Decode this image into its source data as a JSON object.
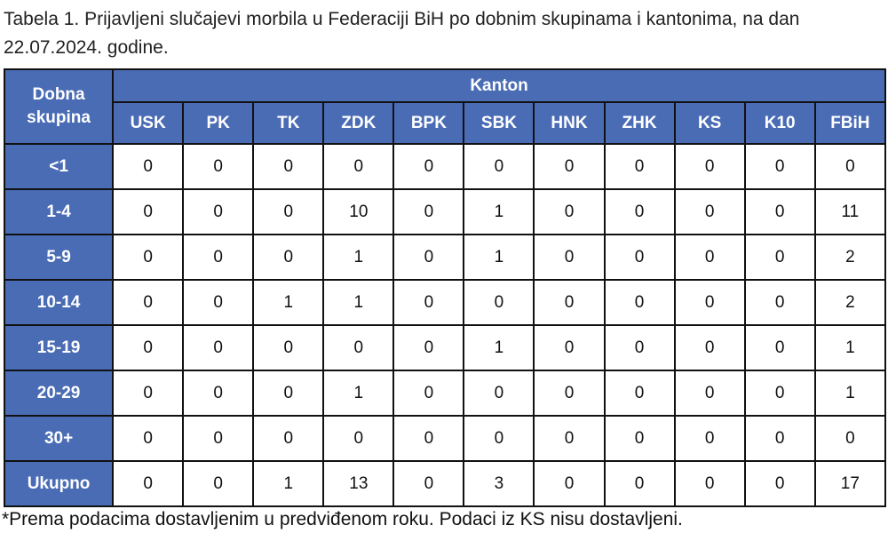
{
  "title": "Tabela 1. Prijavljeni slučajevi morbila u Federaciji BiH po dobnim skupinama i kantonima, na dan 22.07.2024. godine.",
  "table": {
    "corner_header": "Dobna skupina",
    "group_header": "Kanton",
    "columns": [
      "USK",
      "PK",
      "TK",
      "ZDK",
      "BPK",
      "SBK",
      "HNK",
      "ZHK",
      "KS",
      "K10",
      "FBiH"
    ],
    "rows": [
      {
        "label": "<1",
        "values": [
          "0",
          "0",
          "0",
          "0",
          "0",
          "0",
          "0",
          "0",
          "0",
          "0",
          "0"
        ]
      },
      {
        "label": "1-4",
        "values": [
          "0",
          "0",
          "0",
          "10",
          "0",
          "1",
          "0",
          "0",
          "0",
          "0",
          "11"
        ]
      },
      {
        "label": "5-9",
        "values": [
          "0",
          "0",
          "0",
          "1",
          "0",
          "1",
          "0",
          "0",
          "0",
          "0",
          "2"
        ]
      },
      {
        "label": "10-14",
        "values": [
          "0",
          "0",
          "1",
          "1",
          "0",
          "0",
          "0",
          "0",
          "0",
          "0",
          "2"
        ]
      },
      {
        "label": "15-19",
        "values": [
          "0",
          "0",
          "0",
          "0",
          "0",
          "1",
          "0",
          "0",
          "0",
          "0",
          "1"
        ]
      },
      {
        "label": "20-29",
        "values": [
          "0",
          "0",
          "0",
          "1",
          "0",
          "0",
          "0",
          "0",
          "0",
          "0",
          "1"
        ]
      },
      {
        "label": "30+",
        "values": [
          "0",
          "0",
          "0",
          "0",
          "0",
          "0",
          "0",
          "0",
          "0",
          "0",
          "0"
        ]
      },
      {
        "label": "Ukupno",
        "values": [
          "0",
          "0",
          "1",
          "13",
          "0",
          "3",
          "0",
          "0",
          "0",
          "0",
          "17"
        ]
      }
    ]
  },
  "footnote": "*Prema podacima dostavljenim u predviđenom roku. Podaci iz KS nisu dostavljeni.",
  "colors": {
    "header_bg": "#4a6cb5",
    "header_text": "#ffffff",
    "border": "#111111"
  }
}
